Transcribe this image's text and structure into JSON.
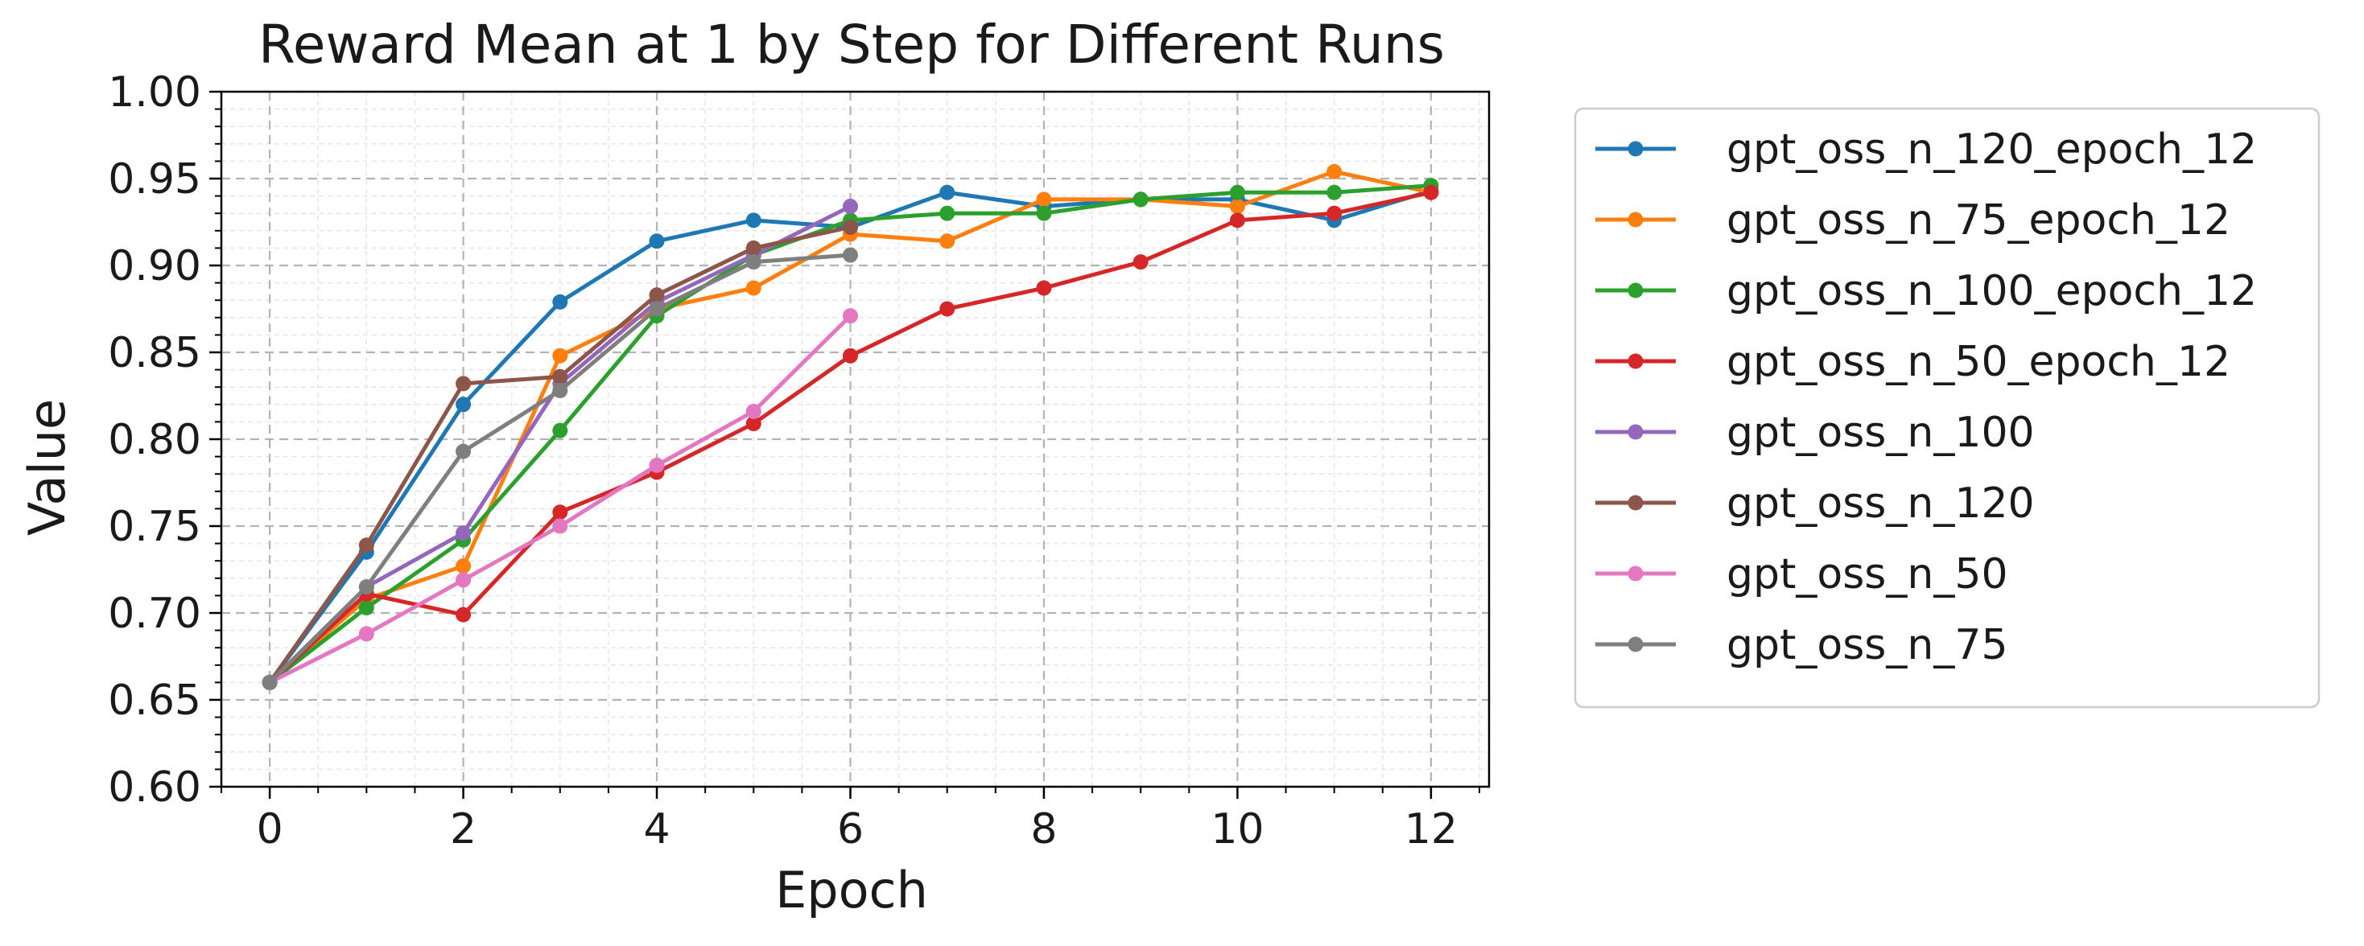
{
  "chart_data": {
    "type": "line",
    "title": "Reward Mean at 1 by Step for Different Runs",
    "xlabel": "Epoch",
    "ylabel": "Value",
    "xlim": [
      -0.5,
      12.6
    ],
    "ylim": [
      0.6,
      1.0
    ],
    "xticks": [
      0,
      2,
      4,
      6,
      8,
      10,
      12
    ],
    "yticks": [
      0.6,
      0.65,
      0.7,
      0.75,
      0.8,
      0.85,
      0.9,
      0.95,
      1.0
    ],
    "ytick_labels": [
      "0.60",
      "0.65",
      "0.70",
      "0.75",
      "0.80",
      "0.85",
      "0.90",
      "0.95",
      "1.00"
    ],
    "grid": true,
    "legend_position": "outside-right",
    "series": [
      {
        "name": "gpt_oss_n_120_epoch_12",
        "color": "#1f77b4",
        "x": [
          0,
          1,
          2,
          3,
          4,
          5,
          6,
          7,
          8,
          9,
          10,
          11,
          12
        ],
        "values": [
          0.66,
          0.735,
          0.82,
          0.879,
          0.914,
          0.926,
          0.922,
          0.942,
          0.934,
          0.938,
          0.938,
          0.926,
          0.943
        ]
      },
      {
        "name": "gpt_oss_n_75_epoch_12",
        "color": "#ff7f0e",
        "x": [
          0,
          1,
          2,
          3,
          4,
          5,
          6,
          7,
          8,
          9,
          10,
          11,
          12
        ],
        "values": [
          0.66,
          0.708,
          0.727,
          0.848,
          0.875,
          0.887,
          0.918,
          0.914,
          0.938,
          0.938,
          0.934,
          0.954,
          0.942
        ]
      },
      {
        "name": "gpt_oss_n_100_epoch_12",
        "color": "#2ca02c",
        "x": [
          0,
          1,
          2,
          3,
          4,
          5,
          6,
          7,
          8,
          9,
          10,
          11,
          12
        ],
        "values": [
          0.66,
          0.703,
          0.742,
          0.805,
          0.871,
          0.906,
          0.926,
          0.93,
          0.93,
          0.938,
          0.942,
          0.942,
          0.946
        ]
      },
      {
        "name": "gpt_oss_n_50_epoch_12",
        "color": "#d62728",
        "x": [
          0,
          1,
          2,
          3,
          4,
          5,
          6,
          7,
          8,
          9,
          10,
          11,
          12
        ],
        "values": [
          0.66,
          0.711,
          0.699,
          0.758,
          0.781,
          0.809,
          0.848,
          0.875,
          0.887,
          0.902,
          0.926,
          0.93,
          0.942
        ]
      },
      {
        "name": "gpt_oss_n_100",
        "color": "#9467bd",
        "x": [
          0,
          1,
          2,
          3,
          4,
          5,
          6
        ],
        "values": [
          0.66,
          0.715,
          0.746,
          0.832,
          0.879,
          0.906,
          0.934
        ]
      },
      {
        "name": "gpt_oss_n_120",
        "color": "#8c564b",
        "x": [
          0,
          1,
          2,
          3,
          4,
          5,
          6
        ],
        "values": [
          0.66,
          0.739,
          0.832,
          0.836,
          0.883,
          0.91,
          0.922
        ]
      },
      {
        "name": "gpt_oss_n_50",
        "color": "#e377c2",
        "x": [
          0,
          1,
          2,
          3,
          4,
          5,
          6
        ],
        "values": [
          0.66,
          0.688,
          0.719,
          0.75,
          0.785,
          0.816,
          0.871
        ]
      },
      {
        "name": "gpt_oss_n_75",
        "color": "#7f7f7f",
        "x": [
          0,
          1,
          2,
          3,
          4,
          5,
          6
        ],
        "values": [
          0.66,
          0.715,
          0.793,
          0.828,
          0.875,
          0.902,
          0.906
        ]
      }
    ]
  }
}
